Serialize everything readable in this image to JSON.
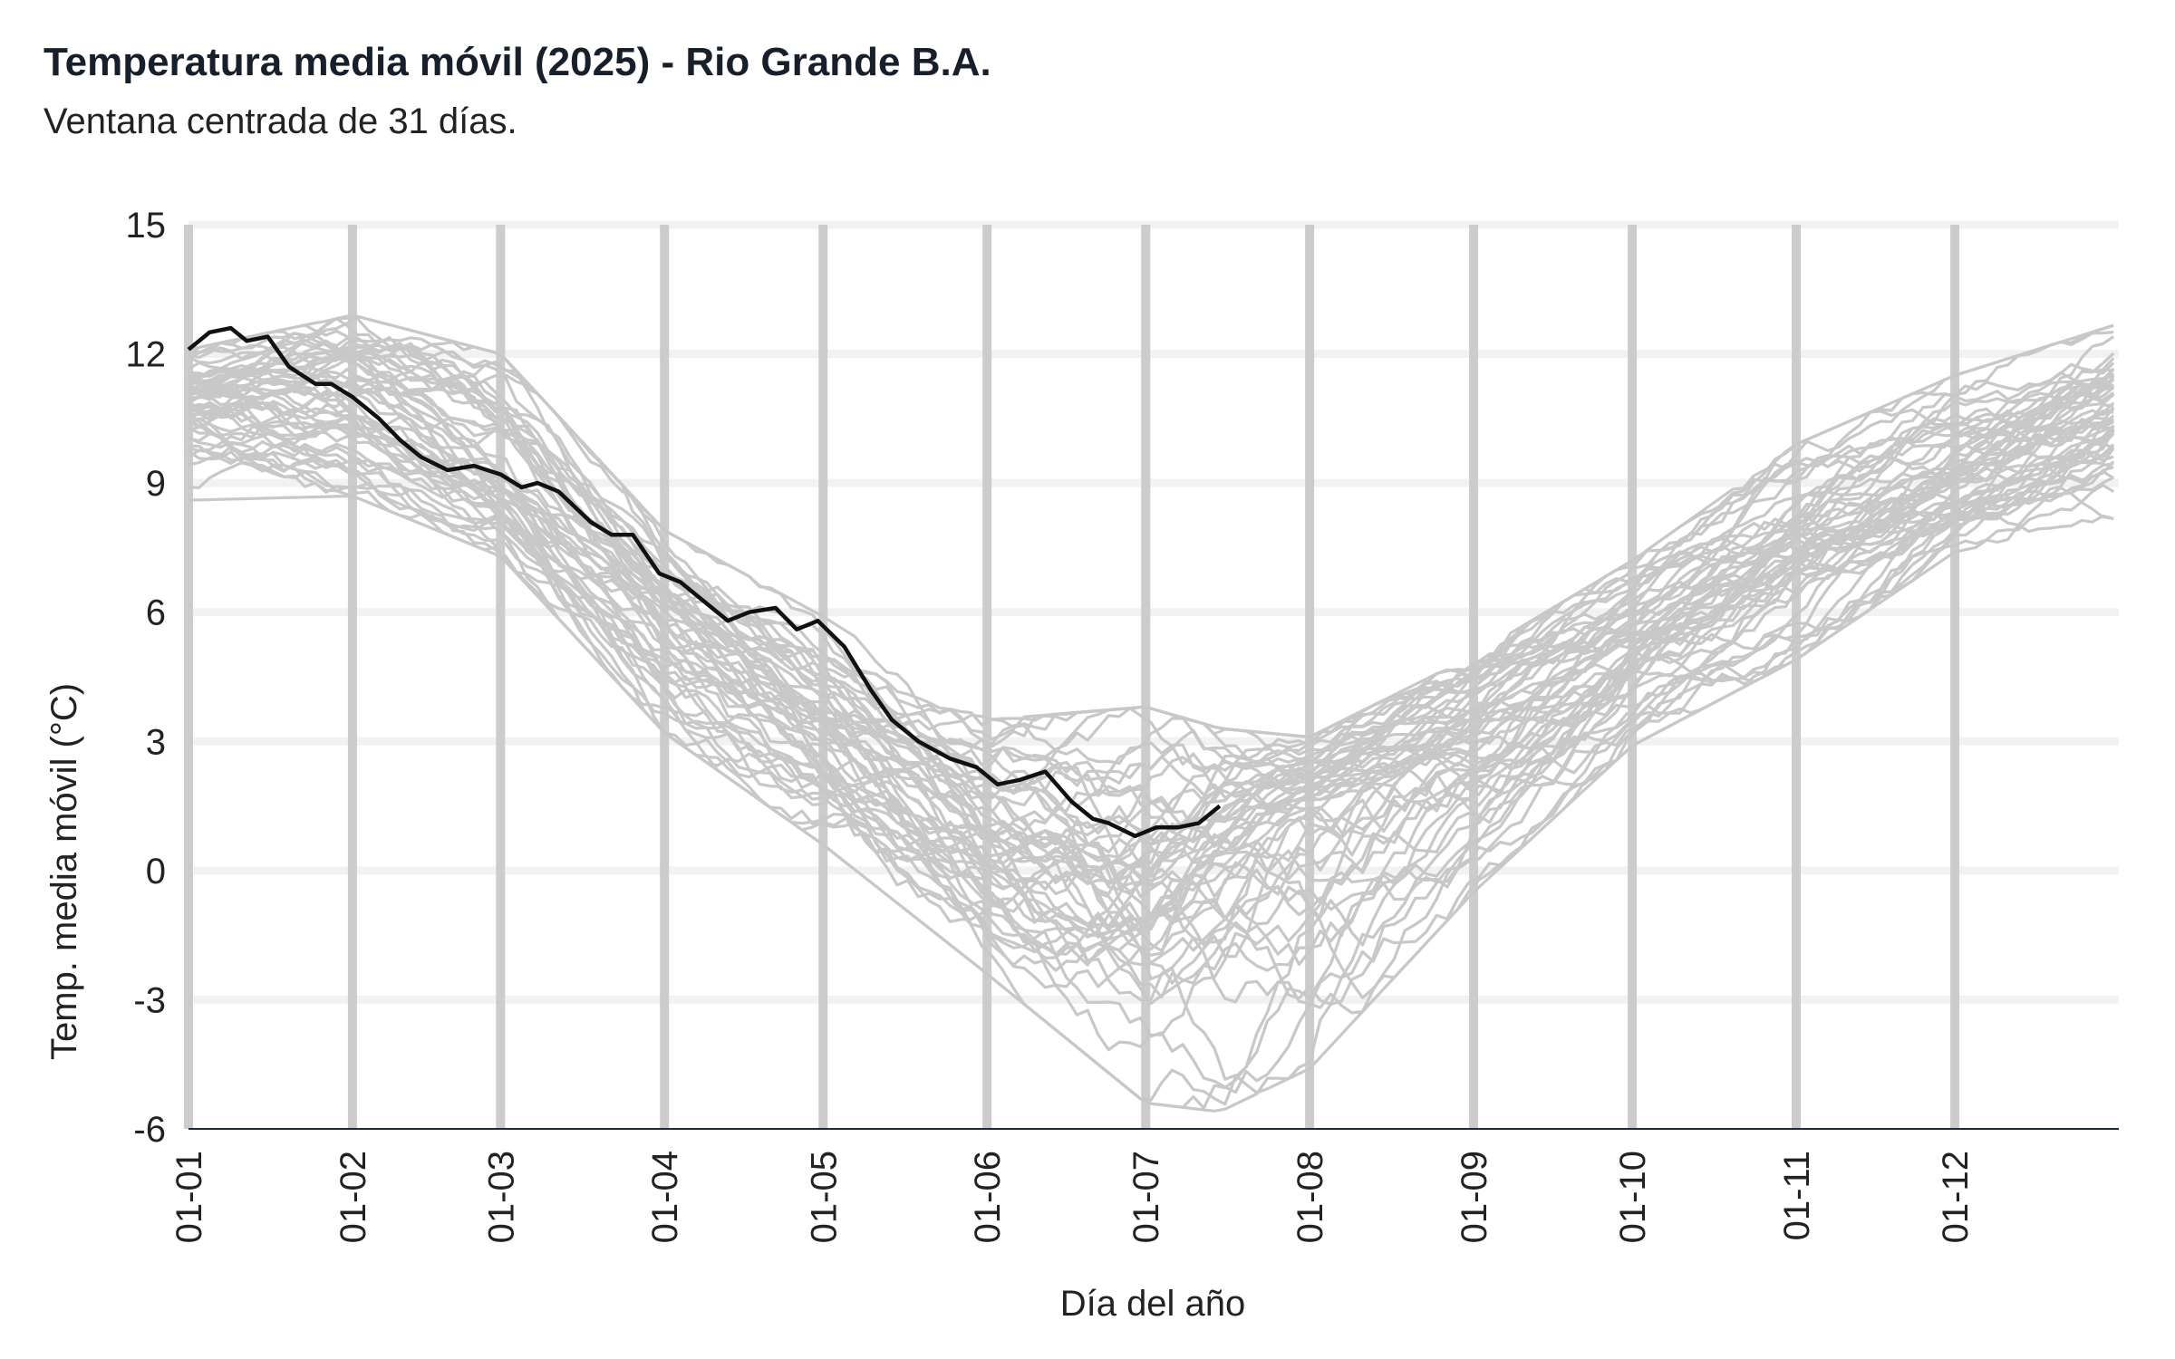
{
  "chart_data": {
    "type": "line",
    "title": "Temperatura media móvil (2025) - Rio Grande B.A.",
    "subtitle": "Ventana centrada de 31 días.",
    "xlabel": "Día del año",
    "ylabel": "Temp. media móvil (°C)",
    "x_tick_labels": [
      "01-01",
      "01-02",
      "01-03",
      "01-04",
      "01-05",
      "01-06",
      "01-07",
      "01-08",
      "01-09",
      "01-10",
      "01-11",
      "01-12"
    ],
    "x_tick_days": [
      1,
      32,
      60,
      91,
      121,
      152,
      182,
      213,
      244,
      274,
      305,
      335
    ],
    "xlim": [
      1,
      366
    ],
    "y_ticks": [
      15,
      12,
      9,
      6,
      3,
      0,
      -3,
      -6
    ],
    "ylim": [
      -6,
      15
    ],
    "grid": true,
    "colors": {
      "historical": "#c8c8c8",
      "current": "#111111",
      "grid": "#f2f2f2",
      "month_lines": "#cccccc"
    },
    "historical_envelope": {
      "x": [
        1,
        32,
        60,
        91,
        121,
        152,
        182,
        196,
        213,
        244,
        274,
        305,
        335,
        366
      ],
      "low": [
        8.6,
        8.7,
        7.3,
        3.2,
        0.6,
        -2.4,
        -5.4,
        -5.6,
        -4.6,
        -0.5,
        2.9,
        4.9,
        7.4,
        8.2
      ],
      "high": [
        12.1,
        12.9,
        12.0,
        7.9,
        5.9,
        3.5,
        3.8,
        3.3,
        3.1,
        5.0,
        7.2,
        9.9,
        11.5,
        12.7
      ],
      "mean": [
        10.8,
        10.8,
        9.4,
        6.0,
        3.5,
        0.7,
        -0.9,
        0.1,
        1.3,
        2.8,
        5.3,
        7.5,
        9.3,
        10.6
      ]
    },
    "series": [
      {
        "year": "2025",
        "x": [
          1,
          5,
          9,
          12,
          16,
          20,
          25,
          28,
          32,
          37,
          41,
          45,
          50,
          55,
          60,
          64,
          67,
          71,
          77,
          81,
          85,
          90,
          94,
          99,
          103,
          107,
          112,
          116,
          120,
          125,
          130,
          134,
          139,
          145,
          150,
          154,
          158,
          163,
          168,
          172,
          175,
          180,
          184,
          188,
          192,
          196
        ],
        "y": [
          12.1,
          12.5,
          12.6,
          12.3,
          12.4,
          11.7,
          11.3,
          11.3,
          11.0,
          10.5,
          10.0,
          9.6,
          9.3,
          9.4,
          9.2,
          8.9,
          9.0,
          8.8,
          8.1,
          7.8,
          7.8,
          6.9,
          6.7,
          6.2,
          5.8,
          6.0,
          6.1,
          5.6,
          5.8,
          5.2,
          4.2,
          3.5,
          3.0,
          2.6,
          2.4,
          2.0,
          2.1,
          2.3,
          1.6,
          1.2,
          1.1,
          0.8,
          1.0,
          1.0,
          1.1,
          1.5
        ]
      }
    ]
  }
}
